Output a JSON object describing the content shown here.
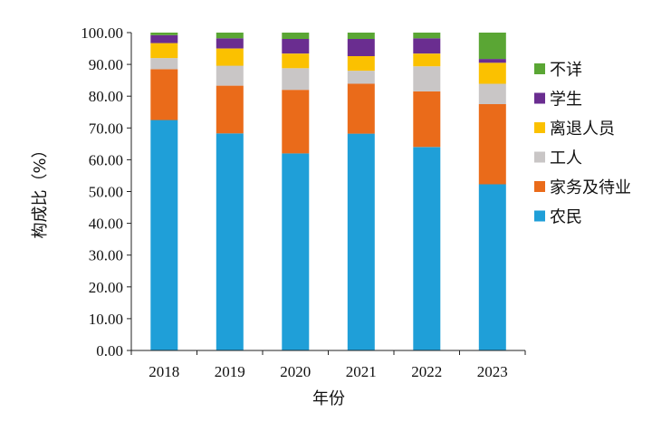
{
  "chart_data": {
    "type": "bar",
    "stacked": true,
    "categories": [
      "2018",
      "2019",
      "2020",
      "2021",
      "2022",
      "2023"
    ],
    "xlabel": "年份",
    "ylabel": "构成比（%）",
    "ylim": [
      0,
      100
    ],
    "yticks": [
      "0.00",
      "10.00",
      "20.00",
      "30.00",
      "40.00",
      "50.00",
      "60.00",
      "70.00",
      "80.00",
      "90.00",
      "100.00"
    ],
    "grid": false,
    "legend_position": "right",
    "series": [
      {
        "name": "农民",
        "color": "#1f9fd8",
        "values": [
          72.5,
          68.3,
          62.0,
          68.2,
          64.0,
          52.3
        ]
      },
      {
        "name": "家务及待业",
        "color": "#ea6b1a",
        "values": [
          16.0,
          15.0,
          20.0,
          15.7,
          17.5,
          25.2
        ]
      },
      {
        "name": "工人",
        "color": "#c9c6c6",
        "values": [
          3.5,
          6.3,
          6.8,
          4.1,
          7.9,
          6.4
        ]
      },
      {
        "name": "离退人员",
        "color": "#fbc100",
        "values": [
          4.7,
          5.4,
          4.6,
          4.6,
          4.0,
          6.6
        ]
      },
      {
        "name": "学生",
        "color": "#6a2d90",
        "values": [
          2.5,
          3.2,
          4.6,
          5.4,
          4.8,
          1.2
        ]
      },
      {
        "name": "不详",
        "color": "#5aa634",
        "values": [
          0.8,
          1.8,
          2.0,
          2.0,
          1.8,
          8.3
        ]
      }
    ]
  }
}
